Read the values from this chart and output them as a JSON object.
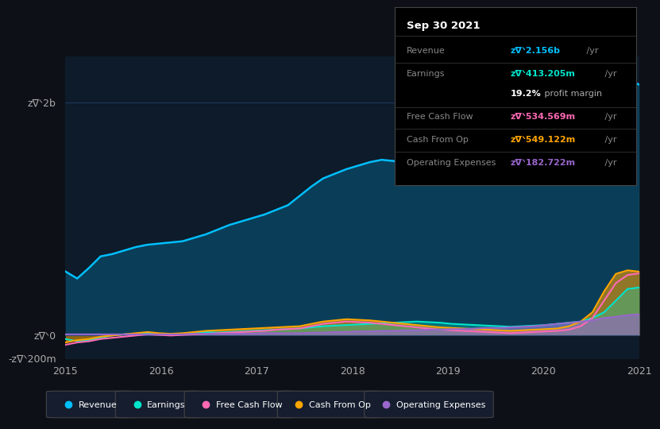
{
  "bg_color": "#0d1117",
  "plot_bg_color": "#0d1b2a",
  "tooltip_title": "Sep 30 2021",
  "ylabel_top": "zᐫ2b",
  "ylabel_zero": "zᐫ0",
  "ylabel_neg": "-zᐫ200m",
  "x_labels": [
    "2015",
    "2016",
    "2017",
    "2018",
    "2019",
    "2020",
    "2021"
  ],
  "colors": {
    "revenue": "#00bfff",
    "earnings": "#00e5cc",
    "free_cash_flow": "#ff69b4",
    "cash_from_op": "#ffa500",
    "operating_expenses": "#9966cc"
  },
  "grid_color": "#1e3a5f",
  "revenue_data": [
    550,
    490,
    580,
    680,
    700,
    730,
    760,
    780,
    790,
    800,
    810,
    840,
    870,
    910,
    950,
    980,
    1010,
    1040,
    1080,
    1120,
    1200,
    1280,
    1350,
    1390,
    1430,
    1460,
    1490,
    1510,
    1500,
    1480,
    1460,
    1440,
    1430,
    1420,
    1400,
    1390,
    1380,
    1360,
    1340,
    1330,
    1320,
    1310,
    1320,
    1350,
    1400,
    1500,
    1700,
    1950,
    2200,
    2156
  ],
  "earnings_data": [
    -30,
    -50,
    -40,
    -20,
    0,
    10,
    15,
    20,
    10,
    5,
    10,
    20,
    30,
    25,
    30,
    35,
    40,
    45,
    50,
    55,
    60,
    70,
    80,
    85,
    90,
    95,
    100,
    105,
    110,
    115,
    120,
    115,
    110,
    100,
    95,
    90,
    85,
    80,
    75,
    80,
    85,
    90,
    100,
    110,
    120,
    150,
    200,
    300,
    400,
    413
  ],
  "free_cash_flow_data": [
    -80,
    -60,
    -50,
    -30,
    -20,
    -10,
    0,
    10,
    5,
    0,
    5,
    10,
    15,
    20,
    25,
    30,
    35,
    40,
    50,
    55,
    60,
    80,
    100,
    110,
    120,
    115,
    110,
    100,
    90,
    80,
    70,
    60,
    50,
    45,
    40,
    35,
    30,
    25,
    20,
    25,
    30,
    35,
    40,
    50,
    80,
    150,
    300,
    450,
    520,
    534
  ],
  "cash_from_op_data": [
    -60,
    -40,
    -30,
    -10,
    0,
    10,
    20,
    30,
    20,
    15,
    20,
    30,
    40,
    45,
    50,
    55,
    60,
    65,
    70,
    75,
    80,
    100,
    120,
    130,
    140,
    135,
    130,
    120,
    110,
    100,
    90,
    80,
    70,
    65,
    60,
    55,
    50,
    45,
    40,
    45,
    50,
    55,
    60,
    80,
    120,
    200,
    380,
    530,
    560,
    549
  ],
  "operating_expenses_data": [
    10,
    10,
    10,
    10,
    10,
    10,
    10,
    10,
    10,
    10,
    10,
    15,
    15,
    15,
    15,
    15,
    15,
    20,
    20,
    20,
    20,
    25,
    25,
    30,
    30,
    35,
    35,
    40,
    40,
    45,
    45,
    50,
    50,
    55,
    55,
    60,
    65,
    65,
    70,
    75,
    80,
    90,
    100,
    110,
    120,
    130,
    150,
    160,
    175,
    182
  ],
  "n_points": 50,
  "ylim": [
    -200,
    2400
  ],
  "tooltip_rows": [
    {
      "label": "Revenue",
      "value": "zᐫ2.156b",
      "suffix": " /yr",
      "color_key": "revenue",
      "bold": false
    },
    {
      "label": "Earnings",
      "value": "zᐫ413.205m",
      "suffix": " /yr",
      "color_key": "earnings",
      "bold": false
    },
    {
      "label": "",
      "value": "19.2%",
      "suffix": " profit margin",
      "color_key": "white",
      "bold": true
    },
    {
      "label": "Free Cash Flow",
      "value": "zᐫ534.569m",
      "suffix": " /yr",
      "color_key": "free_cash_flow",
      "bold": false
    },
    {
      "label": "Cash From Op",
      "value": "zᐫ549.122m",
      "suffix": " /yr",
      "color_key": "cash_from_op",
      "bold": false
    },
    {
      "label": "Operating Expenses",
      "value": "zᐫ182.722m",
      "suffix": " /yr",
      "color_key": "operating_expenses",
      "bold": false
    }
  ],
  "legend_items": [
    {
      "name": "Revenue",
      "color_key": "revenue"
    },
    {
      "name": "Earnings",
      "color_key": "earnings"
    },
    {
      "name": "Free Cash Flow",
      "color_key": "free_cash_flow"
    },
    {
      "name": "Cash From Op",
      "color_key": "cash_from_op"
    },
    {
      "name": "Operating Expenses",
      "color_key": "operating_expenses"
    }
  ]
}
